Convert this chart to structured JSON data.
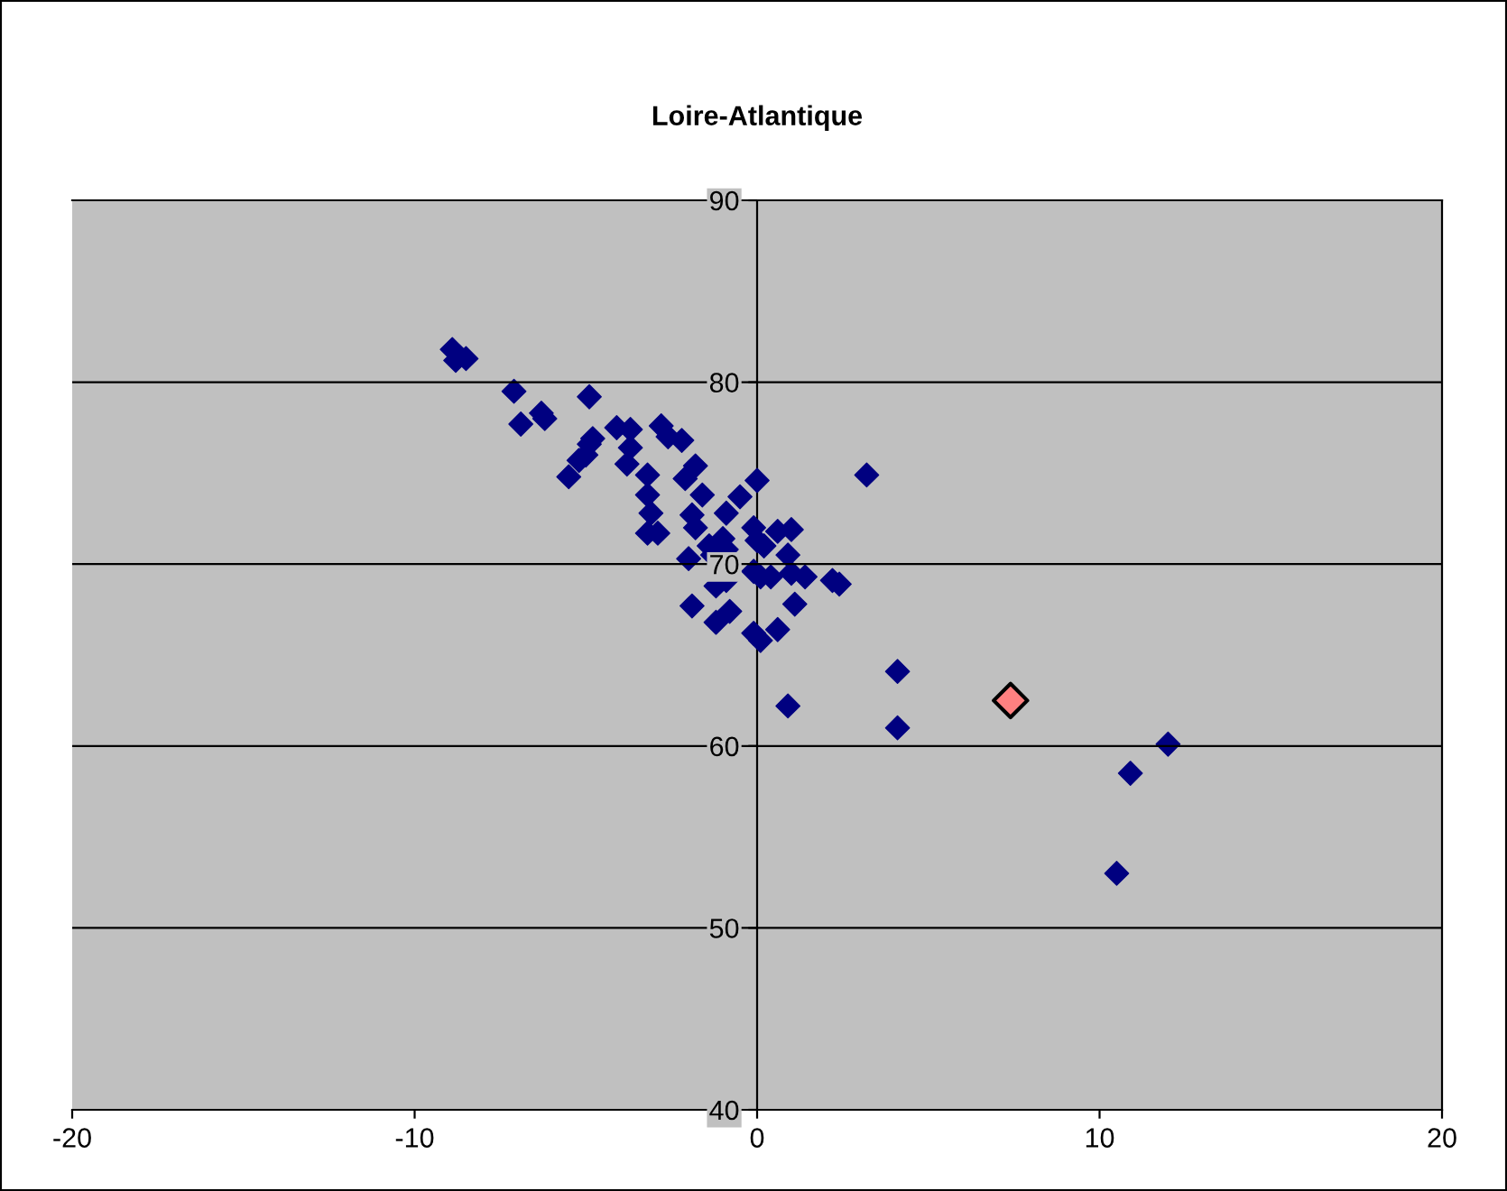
{
  "chart_data": {
    "type": "scatter",
    "title": "Loire-Atlantique",
    "marker": "diamond",
    "grid": "y",
    "xlim": [
      -20,
      20
    ],
    "xticks": [
      -20,
      -10,
      0,
      10,
      20
    ],
    "ylim": [
      40,
      90
    ],
    "yticks": [
      40,
      50,
      60,
      70,
      80,
      90
    ],
    "series": [
      {
        "color": "#000080",
        "x": [
          -8.9,
          -8.8,
          -8.5,
          -7.1,
          -6.9,
          -6.3,
          -6.2,
          -4.9,
          -5.5,
          -5.2,
          -5.0,
          -4.9,
          -4.8,
          -4.1,
          -3.7,
          -3.7,
          -3.8,
          -2.8,
          -2.6,
          -2.2,
          -3.2,
          -3.2,
          -3.1,
          -3.2,
          -2.9,
          -2.1,
          -1.8,
          -1.6,
          -1.9,
          -1.8,
          -2.0,
          -1.4,
          -1.3,
          -1.9,
          -0.9,
          -0.5,
          0.0,
          -1.0,
          -0.9,
          -1.2,
          -0.9,
          -0.8,
          -1.2,
          -0.1,
          0.0,
          0.2,
          -0.1,
          0.1,
          0.4,
          0.6,
          1.0,
          0.9,
          1.0,
          1.4,
          1.1,
          0.6,
          -0.1,
          0.1,
          0.9,
          2.2,
          2.4,
          3.2,
          4.1,
          4.1,
          12.0,
          10.9,
          10.5
        ],
        "values": [
          81.8,
          81.2,
          81.3,
          79.5,
          77.7,
          78.3,
          78.0,
          79.2,
          74.8,
          75.7,
          76.0,
          76.6,
          76.9,
          77.5,
          77.4,
          76.4,
          75.5,
          77.6,
          77.0,
          76.8,
          74.9,
          73.8,
          72.8,
          71.7,
          71.7,
          74.7,
          75.4,
          73.8,
          72.7,
          72.0,
          70.3,
          71.0,
          70.5,
          67.7,
          72.8,
          73.7,
          74.6,
          71.4,
          70.8,
          68.8,
          69.1,
          67.4,
          66.8,
          72.0,
          71.3,
          71.0,
          69.6,
          69.3,
          69.3,
          71.8,
          71.9,
          70.5,
          69.5,
          69.3,
          67.8,
          66.4,
          66.2,
          65.8,
          62.2,
          69.1,
          68.9,
          74.9,
          64.1,
          61.0,
          60.1,
          58.5,
          53.0
        ]
      },
      {
        "color": "#ff8080",
        "x": [
          7.4
        ],
        "values": [
          62.5
        ]
      }
    ]
  }
}
